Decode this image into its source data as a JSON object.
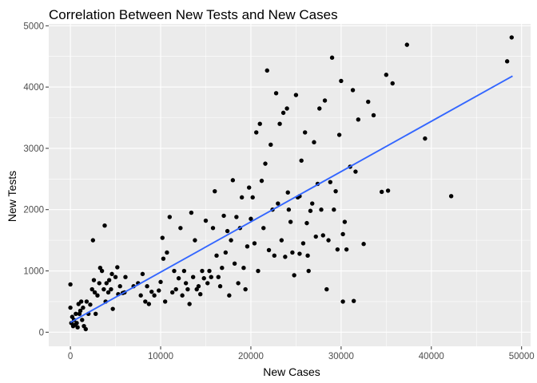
{
  "chart_data": {
    "type": "scatter",
    "title": "Correlation Between New Tests and New Cases",
    "xlabel": "New Cases",
    "ylabel": "New Tests",
    "xlim": [
      -2400,
      51000
    ],
    "ylim": [
      -230,
      5030
    ],
    "xticks": [
      0,
      10000,
      20000,
      30000,
      40000,
      50000
    ],
    "yticks": [
      0,
      1000,
      2000,
      3000,
      4000,
      5000
    ],
    "xtick_labels": [
      "0",
      "10000",
      "20000",
      "30000",
      "40000",
      "50000"
    ],
    "ytick_labels": [
      "0",
      "1000",
      "2000",
      "3000",
      "4000",
      "5000"
    ],
    "grid": true,
    "panel_background": "#ebebeb",
    "point_color": "#000000",
    "trend_color": "#3366ff",
    "trend_line": {
      "x": [
        0,
        49000
      ],
      "y": [
        160,
        4180
      ]
    },
    "points": [
      [
        0,
        780
      ],
      [
        0,
        400
      ],
      [
        100,
        150
      ],
      [
        200,
        250
      ],
      [
        300,
        100
      ],
      [
        400,
        200
      ],
      [
        500,
        120
      ],
      [
        600,
        300
      ],
      [
        700,
        150
      ],
      [
        800,
        80
      ],
      [
        900,
        460
      ],
      [
        1000,
        300
      ],
      [
        1100,
        350
      ],
      [
        1200,
        500
      ],
      [
        1300,
        200
      ],
      [
        1400,
        400
      ],
      [
        1500,
        100
      ],
      [
        1700,
        50
      ],
      [
        1800,
        500
      ],
      [
        2000,
        300
      ],
      [
        2200,
        450
      ],
      [
        2400,
        700
      ],
      [
        2500,
        1500
      ],
      [
        2600,
        850
      ],
      [
        2700,
        650
      ],
      [
        2800,
        300
      ],
      [
        3000,
        600
      ],
      [
        3200,
        800
      ],
      [
        3300,
        1050
      ],
      [
        3500,
        1000
      ],
      [
        3700,
        700
      ],
      [
        3800,
        1740
      ],
      [
        3900,
        500
      ],
      [
        4000,
        800
      ],
      [
        4200,
        650
      ],
      [
        4300,
        850
      ],
      [
        4500,
        700
      ],
      [
        4600,
        950
      ],
      [
        4700,
        380
      ],
      [
        5000,
        900
      ],
      [
        5200,
        1060
      ],
      [
        5300,
        620
      ],
      [
        5500,
        750
      ],
      [
        5800,
        640
      ],
      [
        6000,
        650
      ],
      [
        6100,
        900
      ],
      [
        7000,
        750
      ],
      [
        7500,
        800
      ],
      [
        7800,
        600
      ],
      [
        8000,
        950
      ],
      [
        8300,
        500
      ],
      [
        8500,
        750
      ],
      [
        8700,
        460
      ],
      [
        9000,
        660
      ],
      [
        9300,
        600
      ],
      [
        9800,
        680
      ],
      [
        10000,
        820
      ],
      [
        10200,
        1540
      ],
      [
        10300,
        1200
      ],
      [
        10500,
        500
      ],
      [
        10700,
        1300
      ],
      [
        11000,
        1880
      ],
      [
        11300,
        650
      ],
      [
        11500,
        1000
      ],
      [
        11700,
        700
      ],
      [
        12000,
        880
      ],
      [
        12200,
        1700
      ],
      [
        12400,
        600
      ],
      [
        12600,
        1000
      ],
      [
        12800,
        800
      ],
      [
        13000,
        700
      ],
      [
        13200,
        460
      ],
      [
        13400,
        1950
      ],
      [
        13600,
        900
      ],
      [
        13800,
        1500
      ],
      [
        14000,
        700
      ],
      [
        14200,
        750
      ],
      [
        14400,
        620
      ],
      [
        14600,
        1000
      ],
      [
        14800,
        880
      ],
      [
        15000,
        1820
      ],
      [
        15200,
        800
      ],
      [
        15400,
        1000
      ],
      [
        15600,
        900
      ],
      [
        15800,
        1700
      ],
      [
        16000,
        2300
      ],
      [
        16200,
        1250
      ],
      [
        16400,
        900
      ],
      [
        16600,
        750
      ],
      [
        16800,
        1050
      ],
      [
        17000,
        1900
      ],
      [
        17200,
        1300
      ],
      [
        17400,
        1650
      ],
      [
        17600,
        600
      ],
      [
        17800,
        1500
      ],
      [
        18000,
        2480
      ],
      [
        18200,
        1120
      ],
      [
        18400,
        1880
      ],
      [
        18600,
        800
      ],
      [
        18800,
        1700
      ],
      [
        19000,
        2200
      ],
      [
        19200,
        1050
      ],
      [
        19400,
        700
      ],
      [
        19600,
        1400
      ],
      [
        19800,
        2360
      ],
      [
        20000,
        1850
      ],
      [
        20200,
        2200
      ],
      [
        20400,
        1450
      ],
      [
        20600,
        3260
      ],
      [
        20800,
        1000
      ],
      [
        21000,
        3400
      ],
      [
        21200,
        2470
      ],
      [
        21400,
        1700
      ],
      [
        21600,
        2750
      ],
      [
        21800,
        4270
      ],
      [
        22000,
        1340
      ],
      [
        22200,
        3060
      ],
      [
        22400,
        2000
      ],
      [
        22600,
        1250
      ],
      [
        22800,
        3900
      ],
      [
        23000,
        2100
      ],
      [
        23200,
        3400
      ],
      [
        23400,
        1500
      ],
      [
        23600,
        3580
      ],
      [
        23800,
        1230
      ],
      [
        24000,
        3650
      ],
      [
        24200,
        2000
      ],
      [
        24400,
        1800
      ],
      [
        24600,
        1300
      ],
      [
        24800,
        930
      ],
      [
        25000,
        3870
      ],
      [
        25200,
        2200
      ],
      [
        25400,
        1280
      ],
      [
        25600,
        2800
      ],
      [
        25800,
        1450
      ],
      [
        26000,
        3260
      ],
      [
        26200,
        1780
      ],
      [
        26400,
        1000
      ],
      [
        26600,
        1980
      ],
      [
        26800,
        2100
      ],
      [
        27000,
        3100
      ],
      [
        27200,
        1560
      ],
      [
        27400,
        2420
      ],
      [
        27600,
        3650
      ],
      [
        27800,
        2000
      ],
      [
        28000,
        1580
      ],
      [
        28200,
        3780
      ],
      [
        28400,
        700
      ],
      [
        28600,
        1500
      ],
      [
        28800,
        2450
      ],
      [
        29000,
        4480
      ],
      [
        29200,
        2000
      ],
      [
        29400,
        2300
      ],
      [
        29600,
        1350
      ],
      [
        29800,
        3220
      ],
      [
        30000,
        4100
      ],
      [
        30200,
        1600
      ],
      [
        30400,
        1800
      ],
      [
        30600,
        1350
      ],
      [
        31000,
        2700
      ],
      [
        31300,
        3950
      ],
      [
        31600,
        2620
      ],
      [
        31900,
        3470
      ],
      [
        32500,
        1440
      ],
      [
        33000,
        3760
      ],
      [
        33600,
        3540
      ],
      [
        34500,
        2290
      ],
      [
        35000,
        4200
      ],
      [
        35200,
        2310
      ],
      [
        35700,
        4060
      ],
      [
        37300,
        4690
      ],
      [
        39300,
        3160
      ],
      [
        42200,
        2220
      ],
      [
        48400,
        4420
      ],
      [
        48900,
        4810
      ],
      [
        30200,
        500
      ],
      [
        31400,
        510
      ],
      [
        26300,
        1250
      ],
      [
        25400,
        2220
      ],
      [
        24100,
        2280
      ]
    ]
  }
}
